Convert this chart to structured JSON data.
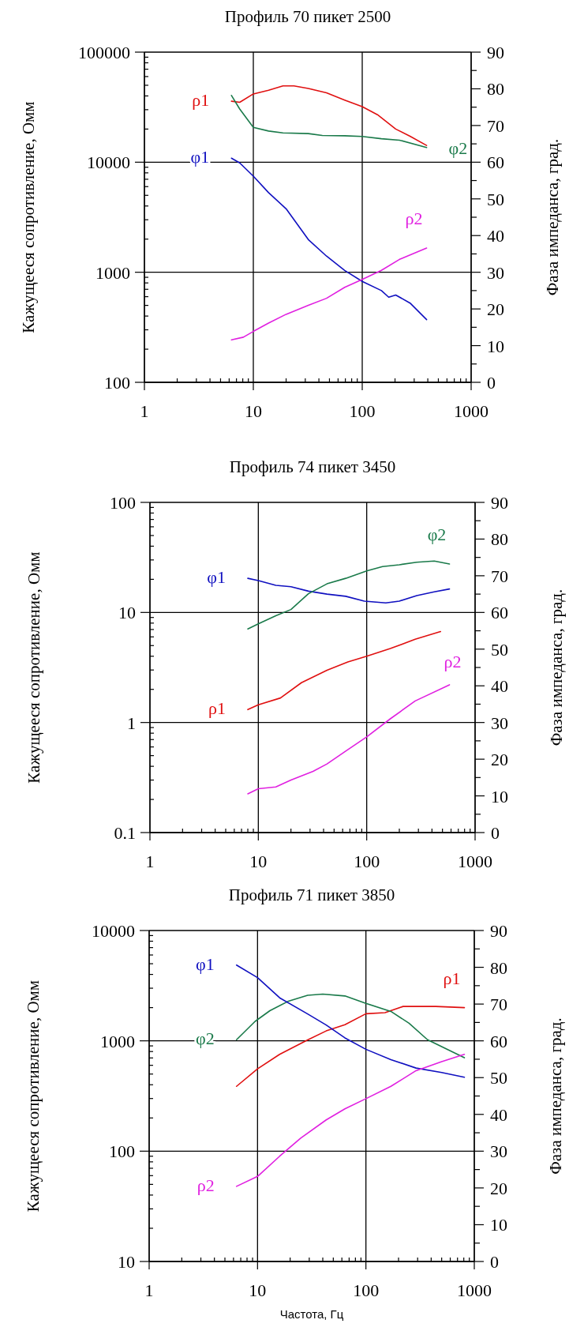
{
  "chart_data": [
    {
      "type": "line",
      "title": "Профиль 70 пикет 2500",
      "ylabel": "Кажущееся сопротивление, Омм",
      "y2label": "Фаза импеданса, град.",
      "log": "xy",
      "grid": true,
      "xlim": [
        1,
        1000
      ],
      "xticks": [
        1,
        {
          "value": 2,
          "label": null
        },
        {
          "value": 3,
          "label": null
        },
        {
          "value": 4,
          "label": null
        },
        {
          "value": 5,
          "label": null
        },
        {
          "value": 6,
          "label": null
        },
        {
          "value": 7,
          "label": null
        },
        {
          "value": 8,
          "label": null
        },
        {
          "value": 9,
          "label": null
        },
        10,
        {
          "value": 20,
          "label": null
        },
        {
          "value": 30,
          "label": null
        },
        {
          "value": 40,
          "label": null
        },
        {
          "value": 50,
          "label": null
        },
        {
          "value": 60,
          "label": null
        },
        {
          "value": 70,
          "label": null
        },
        {
          "value": 80,
          "label": null
        },
        {
          "value": 90,
          "label": null
        },
        100,
        {
          "value": 200,
          "label": null
        },
        {
          "value": 300,
          "label": null
        },
        {
          "value": 400,
          "label": null
        },
        {
          "value": 500,
          "label": null
        },
        {
          "value": 600,
          "label": null
        },
        {
          "value": 700,
          "label": null
        },
        {
          "value": 800,
          "label": null
        },
        {
          "value": 900,
          "label": null
        },
        1000
      ],
      "ylim": [
        100,
        100000
      ],
      "yticks": [
        100,
        {
          "value": 200,
          "label": null
        },
        {
          "value": 300,
          "label": null
        },
        {
          "value": 400,
          "label": null
        },
        {
          "value": 500,
          "label": null
        },
        {
          "value": 600,
          "label": null
        },
        {
          "value": 700,
          "label": null
        },
        {
          "value": 800,
          "label": null
        },
        {
          "value": 900,
          "label": null
        },
        1000,
        {
          "value": 2000,
          "label": null
        },
        {
          "value": 3000,
          "label": null
        },
        {
          "value": 4000,
          "label": null
        },
        {
          "value": 5000,
          "label": null
        },
        {
          "value": 6000,
          "label": null
        },
        {
          "value": 7000,
          "label": null
        },
        {
          "value": 8000,
          "label": null
        },
        {
          "value": 9000,
          "label": null
        },
        10000,
        {
          "value": 20000,
          "label": null
        },
        {
          "value": 30000,
          "label": null
        },
        {
          "value": 40000,
          "label": null
        },
        {
          "value": 50000,
          "label": null
        },
        {
          "value": 60000,
          "label": null
        },
        {
          "value": 70000,
          "label": null
        },
        {
          "value": 80000,
          "label": null
        },
        {
          "value": 90000,
          "label": null
        },
        100000
      ],
      "y2lim": [
        0,
        90
      ],
      "y2ticks": [
        0,
        {
          "value": 5,
          "label": null
        },
        10,
        {
          "value": 15,
          "label": null
        },
        20,
        {
          "value": 25,
          "label": null
        },
        30,
        {
          "value": 35,
          "label": null
        },
        40,
        {
          "value": 45,
          "label": null
        },
        50,
        {
          "value": 55,
          "label": null
        },
        60,
        {
          "value": 65,
          "label": null
        },
        70,
        {
          "value": 75,
          "label": null
        },
        80,
        {
          "value": 85,
          "label": null
        },
        90
      ],
      "series": [
        {
          "name": "ρ1",
          "color": "#e01010",
          "x": [
            6.3,
            7.5,
            10,
            13.8,
            18.7,
            23.6,
            32,
            47,
            69,
            100,
            138,
            203,
            275,
            390
          ],
          "values": [
            35800,
            35000,
            41700,
            45000,
            49300,
            49300,
            46800,
            42700,
            36700,
            32000,
            27000,
            20000,
            17200,
            14200
          ]
        },
        {
          "name": "φ2",
          "color": "#1a7a4a",
          "axis": "y2",
          "x": [
            6.3,
            7.5,
            10,
            13.8,
            18.7,
            32,
            43,
            69,
            100,
            150,
            220,
            390
          ],
          "values": [
            78.2,
            74.5,
            69.5,
            68.5,
            68,
            67.8,
            67.3,
            67.2,
            67,
            66.4,
            66,
            64
          ]
        },
        {
          "name": "φ1",
          "color": "#1010c0",
          "axis": "y2",
          "x": [
            6.3,
            7.5,
            10,
            13.8,
            20,
            32,
            47,
            69,
            100,
            150,
            175,
            203,
            275,
            390
          ],
          "values": [
            61.1,
            59.8,
            56.2,
            51.7,
            47.3,
            38.9,
            34.4,
            30.5,
            27.5,
            25,
            23.2,
            23.8,
            21.6,
            17.1
          ]
        },
        {
          "name": "ρ2",
          "color": "#e020e0",
          "x": [
            6.3,
            8.1,
            10,
            13.8,
            20,
            32,
            47,
            69,
            100,
            150,
            220,
            390
          ],
          "values": [
            243,
            257,
            290,
            345,
            415,
            500,
            580,
            730,
            860,
            1040,
            1310,
            1660
          ]
        }
      ]
    },
    {
      "type": "line",
      "title": "Профиль 74 пикет 3450",
      "ylabel": "Кажущееся сопротивление, Омм",
      "y2label": "Фаза импеданса, град.",
      "log": "xy",
      "grid": true,
      "xlim": [
        1,
        1000
      ],
      "xticks": [
        1,
        {
          "value": 2,
          "label": null
        },
        {
          "value": 3,
          "label": null
        },
        {
          "value": 4,
          "label": null
        },
        {
          "value": 5,
          "label": null
        },
        {
          "value": 6,
          "label": null
        },
        {
          "value": 7,
          "label": null
        },
        {
          "value": 8,
          "label": null
        },
        {
          "value": 9,
          "label": null
        },
        10,
        {
          "value": 20,
          "label": null
        },
        {
          "value": 30,
          "label": null
        },
        {
          "value": 40,
          "label": null
        },
        {
          "value": 50,
          "label": null
        },
        {
          "value": 60,
          "label": null
        },
        {
          "value": 70,
          "label": null
        },
        {
          "value": 80,
          "label": null
        },
        {
          "value": 90,
          "label": null
        },
        100,
        {
          "value": 200,
          "label": null
        },
        {
          "value": 300,
          "label": null
        },
        {
          "value": 400,
          "label": null
        },
        {
          "value": 500,
          "label": null
        },
        {
          "value": 600,
          "label": null
        },
        {
          "value": 700,
          "label": null
        },
        {
          "value": 800,
          "label": null
        },
        {
          "value": 900,
          "label": null
        },
        1000
      ],
      "ylim": [
        0.1,
        100
      ],
      "yticks": [
        0.1,
        {
          "value": 0.2,
          "label": null
        },
        {
          "value": 0.3,
          "label": null
        },
        {
          "value": 0.4,
          "label": null
        },
        {
          "value": 0.5,
          "label": null
        },
        {
          "value": 0.6,
          "label": null
        },
        {
          "value": 0.7,
          "label": null
        },
        {
          "value": 0.8,
          "label": null
        },
        {
          "value": 0.9,
          "label": null
        },
        1,
        {
          "value": 2,
          "label": null
        },
        {
          "value": 3,
          "label": null
        },
        {
          "value": 4,
          "label": null
        },
        {
          "value": 5,
          "label": null
        },
        {
          "value": 6,
          "label": null
        },
        {
          "value": 7,
          "label": null
        },
        {
          "value": 8,
          "label": null
        },
        {
          "value": 9,
          "label": null
        },
        10,
        {
          "value": 20,
          "label": null
        },
        {
          "value": 30,
          "label": null
        },
        {
          "value": 40,
          "label": null
        },
        {
          "value": 50,
          "label": null
        },
        {
          "value": 60,
          "label": null
        },
        {
          "value": 70,
          "label": null
        },
        {
          "value": 80,
          "label": null
        },
        {
          "value": 90,
          "label": null
        },
        100
      ],
      "y2lim": [
        0,
        90
      ],
      "y2ticks": [
        0,
        {
          "value": 5,
          "label": null
        },
        10,
        {
          "value": 15,
          "label": null
        },
        20,
        {
          "value": 25,
          "label": null
        },
        30,
        {
          "value": 35,
          "label": null
        },
        40,
        {
          "value": 45,
          "label": null
        },
        50,
        {
          "value": 55,
          "label": null
        },
        60,
        {
          "value": 65,
          "label": null
        },
        70,
        {
          "value": 75,
          "label": null
        },
        80,
        {
          "value": 85,
          "label": null
        },
        90
      ],
      "series": [
        {
          "name": "φ1",
          "color": "#1010c0",
          "axis": "y2",
          "x": [
            8,
            10,
            14.5,
            20,
            29,
            43,
            64,
            95,
            150,
            200,
            290,
            420,
            580
          ],
          "values": [
            69.3,
            68.7,
            67.4,
            67,
            65.8,
            65,
            64.4,
            63.1,
            62.6,
            63.1,
            64.6,
            65.6,
            66.4
          ]
        },
        {
          "name": "φ2",
          "color": "#1a7a4a",
          "axis": "y2",
          "x": [
            8,
            10,
            14.5,
            20,
            29,
            43,
            64,
            100,
            140,
            200,
            290,
            420,
            580
          ],
          "values": [
            55.5,
            56.9,
            59.1,
            60.8,
            65.1,
            67.8,
            69.3,
            71.3,
            72.5,
            73,
            73.7,
            74,
            73.2
          ]
        },
        {
          "name": "ρ1",
          "color": "#e01010",
          "x": [
            8,
            10,
            16,
            25,
            43,
            67,
            100,
            165,
            280,
            480
          ],
          "values": [
            1.31,
            1.45,
            1.67,
            2.3,
            2.98,
            3.55,
            4,
            4.7,
            5.7,
            6.7
          ]
        },
        {
          "name": "ρ2",
          "color": "#e020e0",
          "x": [
            8,
            10,
            14.5,
            20,
            32,
            43,
            64,
            100,
            165,
            280,
            580
          ],
          "values": [
            0.225,
            0.25,
            0.26,
            0.3,
            0.36,
            0.42,
            0.55,
            0.74,
            1.08,
            1.57,
            2.2
          ]
        }
      ]
    },
    {
      "type": "line",
      "title": "Профиль 71 пикет 3850",
      "xlabel": "Частота, Гц",
      "ylabel": "Кажущееся сопротивление, Омм",
      "y2label": "Фаза импеданса, град.",
      "log": "xy",
      "grid": true,
      "xlim": [
        1,
        1000
      ],
      "xticks": [
        1,
        {
          "value": 2,
          "label": null
        },
        {
          "value": 3,
          "label": null
        },
        {
          "value": 4,
          "label": null
        },
        {
          "value": 5,
          "label": null
        },
        {
          "value": 6,
          "label": null
        },
        {
          "value": 7,
          "label": null
        },
        {
          "value": 8,
          "label": null
        },
        {
          "value": 9,
          "label": null
        },
        10,
        {
          "value": 20,
          "label": null
        },
        {
          "value": 30,
          "label": null
        },
        {
          "value": 40,
          "label": null
        },
        {
          "value": 50,
          "label": null
        },
        {
          "value": 60,
          "label": null
        },
        {
          "value": 70,
          "label": null
        },
        {
          "value": 80,
          "label": null
        },
        {
          "value": 90,
          "label": null
        },
        100,
        {
          "value": 200,
          "label": null
        },
        {
          "value": 300,
          "label": null
        },
        {
          "value": 400,
          "label": null
        },
        {
          "value": 500,
          "label": null
        },
        {
          "value": 600,
          "label": null
        },
        {
          "value": 700,
          "label": null
        },
        {
          "value": 800,
          "label": null
        },
        {
          "value": 900,
          "label": null
        },
        1000
      ],
      "ylim": [
        10,
        10000
      ],
      "yticks": [
        10,
        {
          "value": 20,
          "label": null
        },
        {
          "value": 30,
          "label": null
        },
        {
          "value": 40,
          "label": null
        },
        {
          "value": 50,
          "label": null
        },
        {
          "value": 60,
          "label": null
        },
        {
          "value": 70,
          "label": null
        },
        {
          "value": 80,
          "label": null
        },
        {
          "value": 90,
          "label": null
        },
        100,
        {
          "value": 200,
          "label": null
        },
        {
          "value": 300,
          "label": null
        },
        {
          "value": 400,
          "label": null
        },
        {
          "value": 500,
          "label": null
        },
        {
          "value": 600,
          "label": null
        },
        {
          "value": 700,
          "label": null
        },
        {
          "value": 800,
          "label": null
        },
        {
          "value": 900,
          "label": null
        },
        1000,
        {
          "value": 2000,
          "label": null
        },
        {
          "value": 3000,
          "label": null
        },
        {
          "value": 4000,
          "label": null
        },
        {
          "value": 5000,
          "label": null
        },
        {
          "value": 6000,
          "label": null
        },
        {
          "value": 7000,
          "label": null
        },
        {
          "value": 8000,
          "label": null
        },
        {
          "value": 9000,
          "label": null
        },
        10000
      ],
      "y2lim": [
        0,
        90
      ],
      "y2ticks": [
        0,
        {
          "value": 5,
          "label": null
        },
        10,
        {
          "value": 15,
          "label": null
        },
        20,
        {
          "value": 25,
          "label": null
        },
        30,
        {
          "value": 35,
          "label": null
        },
        40,
        {
          "value": 45,
          "label": null
        },
        50,
        {
          "value": 55,
          "label": null
        },
        60,
        {
          "value": 65,
          "label": null
        },
        70,
        {
          "value": 75,
          "label": null
        },
        80,
        {
          "value": 85,
          "label": null
        },
        90
      ],
      "series": [
        {
          "name": "ρ1",
          "color": "#e01010",
          "x": [
            6.4,
            10,
            16,
            29,
            43,
            64,
            100,
            150,
            220,
            440,
            810
          ],
          "values": [
            387,
            557,
            755,
            1020,
            1230,
            1400,
            1760,
            1800,
            2050,
            2050,
            2000
          ]
        },
        {
          "name": "φ2",
          "color": "#1a7a4a",
          "axis": "y2",
          "x": [
            6.4,
            9.5,
            13,
            19,
            29,
            40,
            64,
            100,
            170,
            250,
            370,
            810
          ],
          "values": [
            60.3,
            65.3,
            68.2,
            70.7,
            72.4,
            72.7,
            72.2,
            70.2,
            68,
            64.8,
            60.3,
            55.4
          ]
        },
        {
          "name": "φ1",
          "color": "#1010c0",
          "axis": "y2",
          "x": [
            6.4,
            10,
            16,
            29,
            43,
            64,
            100,
            170,
            290,
            500,
            810
          ],
          "values": [
            80.6,
            77.2,
            71.7,
            67.3,
            64.3,
            60.8,
            57.7,
            54.9,
            52.6,
            51.4,
            50.1
          ]
        },
        {
          "name": "ρ2",
          "color": "#e020e0",
          "x": [
            6.4,
            10,
            16,
            25,
            43,
            64,
            100,
            170,
            290,
            500,
            810
          ],
          "values": [
            48,
            59,
            90,
            131,
            192,
            242,
            299,
            387,
            537,
            649,
            755
          ]
        }
      ]
    }
  ]
}
